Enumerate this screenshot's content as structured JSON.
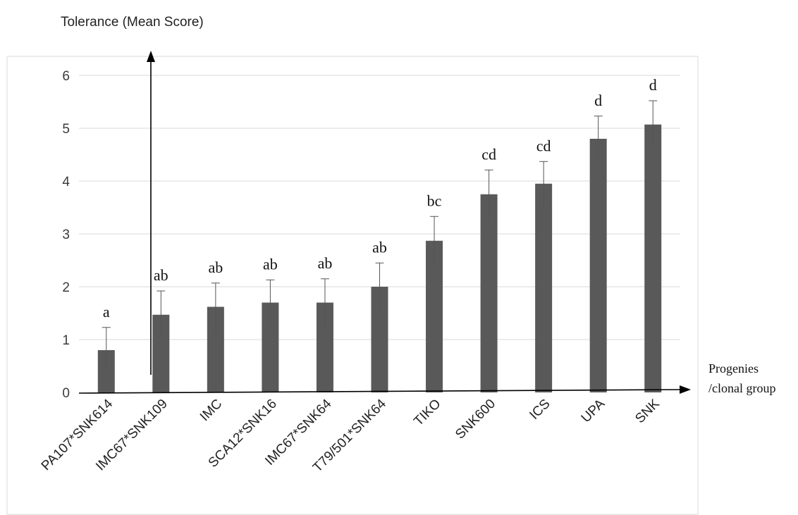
{
  "chart_data": {
    "type": "bar",
    "ylabel": "Tolerance (Mean Score)",
    "xlabel_lines": [
      "Progenies",
      "/clonal group"
    ],
    "ylim": [
      0,
      6
    ],
    "yticks": [
      "0",
      "1",
      "2",
      "3",
      "4",
      "5",
      "6"
    ],
    "grid": true,
    "categories": [
      "PA107*SNK614",
      "IMC67*SNK109",
      "IMC",
      "SCA12*SNK16",
      "IMC67*SNK64",
      "T79/501*SNK64",
      "TIKO",
      "SNK600",
      "ICS",
      "UPA",
      "SNK"
    ],
    "values": [
      0.8,
      1.47,
      1.62,
      1.7,
      1.7,
      2.0,
      2.87,
      3.75,
      3.95,
      4.8,
      5.07
    ],
    "error": [
      0.43,
      0.45,
      0.45,
      0.43,
      0.45,
      0.45,
      0.46,
      0.46,
      0.42,
      0.43,
      0.45
    ],
    "letters": [
      "a",
      "ab",
      "ab",
      "ab",
      "ab",
      "ab",
      "bc",
      "cd",
      "cd",
      "d",
      "d"
    ],
    "bar_color": "#595959"
  }
}
